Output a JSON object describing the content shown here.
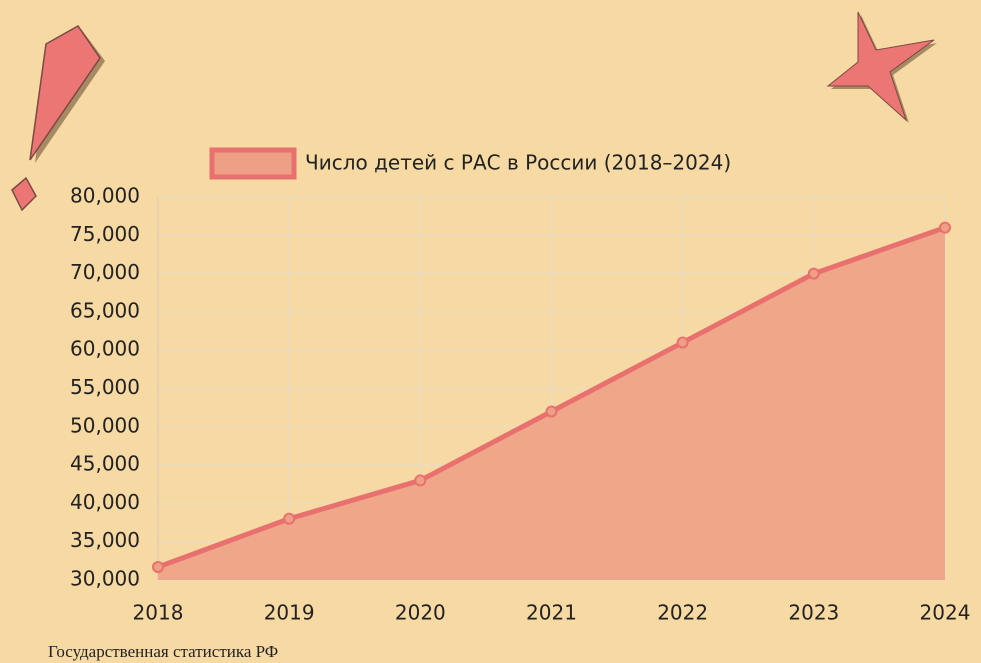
{
  "chart_data": {
    "type": "area",
    "categories": [
      "2018",
      "2019",
      "2020",
      "2021",
      "2022",
      "2023",
      "2024"
    ],
    "series": [
      {
        "name": "Число детей с РАС в России (2018–2024)",
        "color": "#e8716f",
        "fill": "#eea086",
        "values": [
          31700,
          38000,
          43000,
          52000,
          61000,
          70000,
          76000
        ]
      }
    ],
    "ylim": [
      30000,
      80000
    ],
    "yticks": [
      {
        "value": 30000,
        "label": "30,000"
      },
      {
        "value": 35000,
        "label": "35,000"
      },
      {
        "value": 40000,
        "label": "40,000"
      },
      {
        "value": 45000,
        "label": "45,000"
      },
      {
        "value": 50000,
        "label": "50,000"
      },
      {
        "value": 55000,
        "label": "55,000"
      },
      {
        "value": 60000,
        "label": "60,000"
      },
      {
        "value": 65000,
        "label": "65,000"
      },
      {
        "value": 70000,
        "label": "70,000"
      },
      {
        "value": 75000,
        "label": "75,000"
      },
      {
        "value": 80000,
        "label": "80,000"
      }
    ],
    "grid": true,
    "source": "Государственная статистика РФ"
  }
}
